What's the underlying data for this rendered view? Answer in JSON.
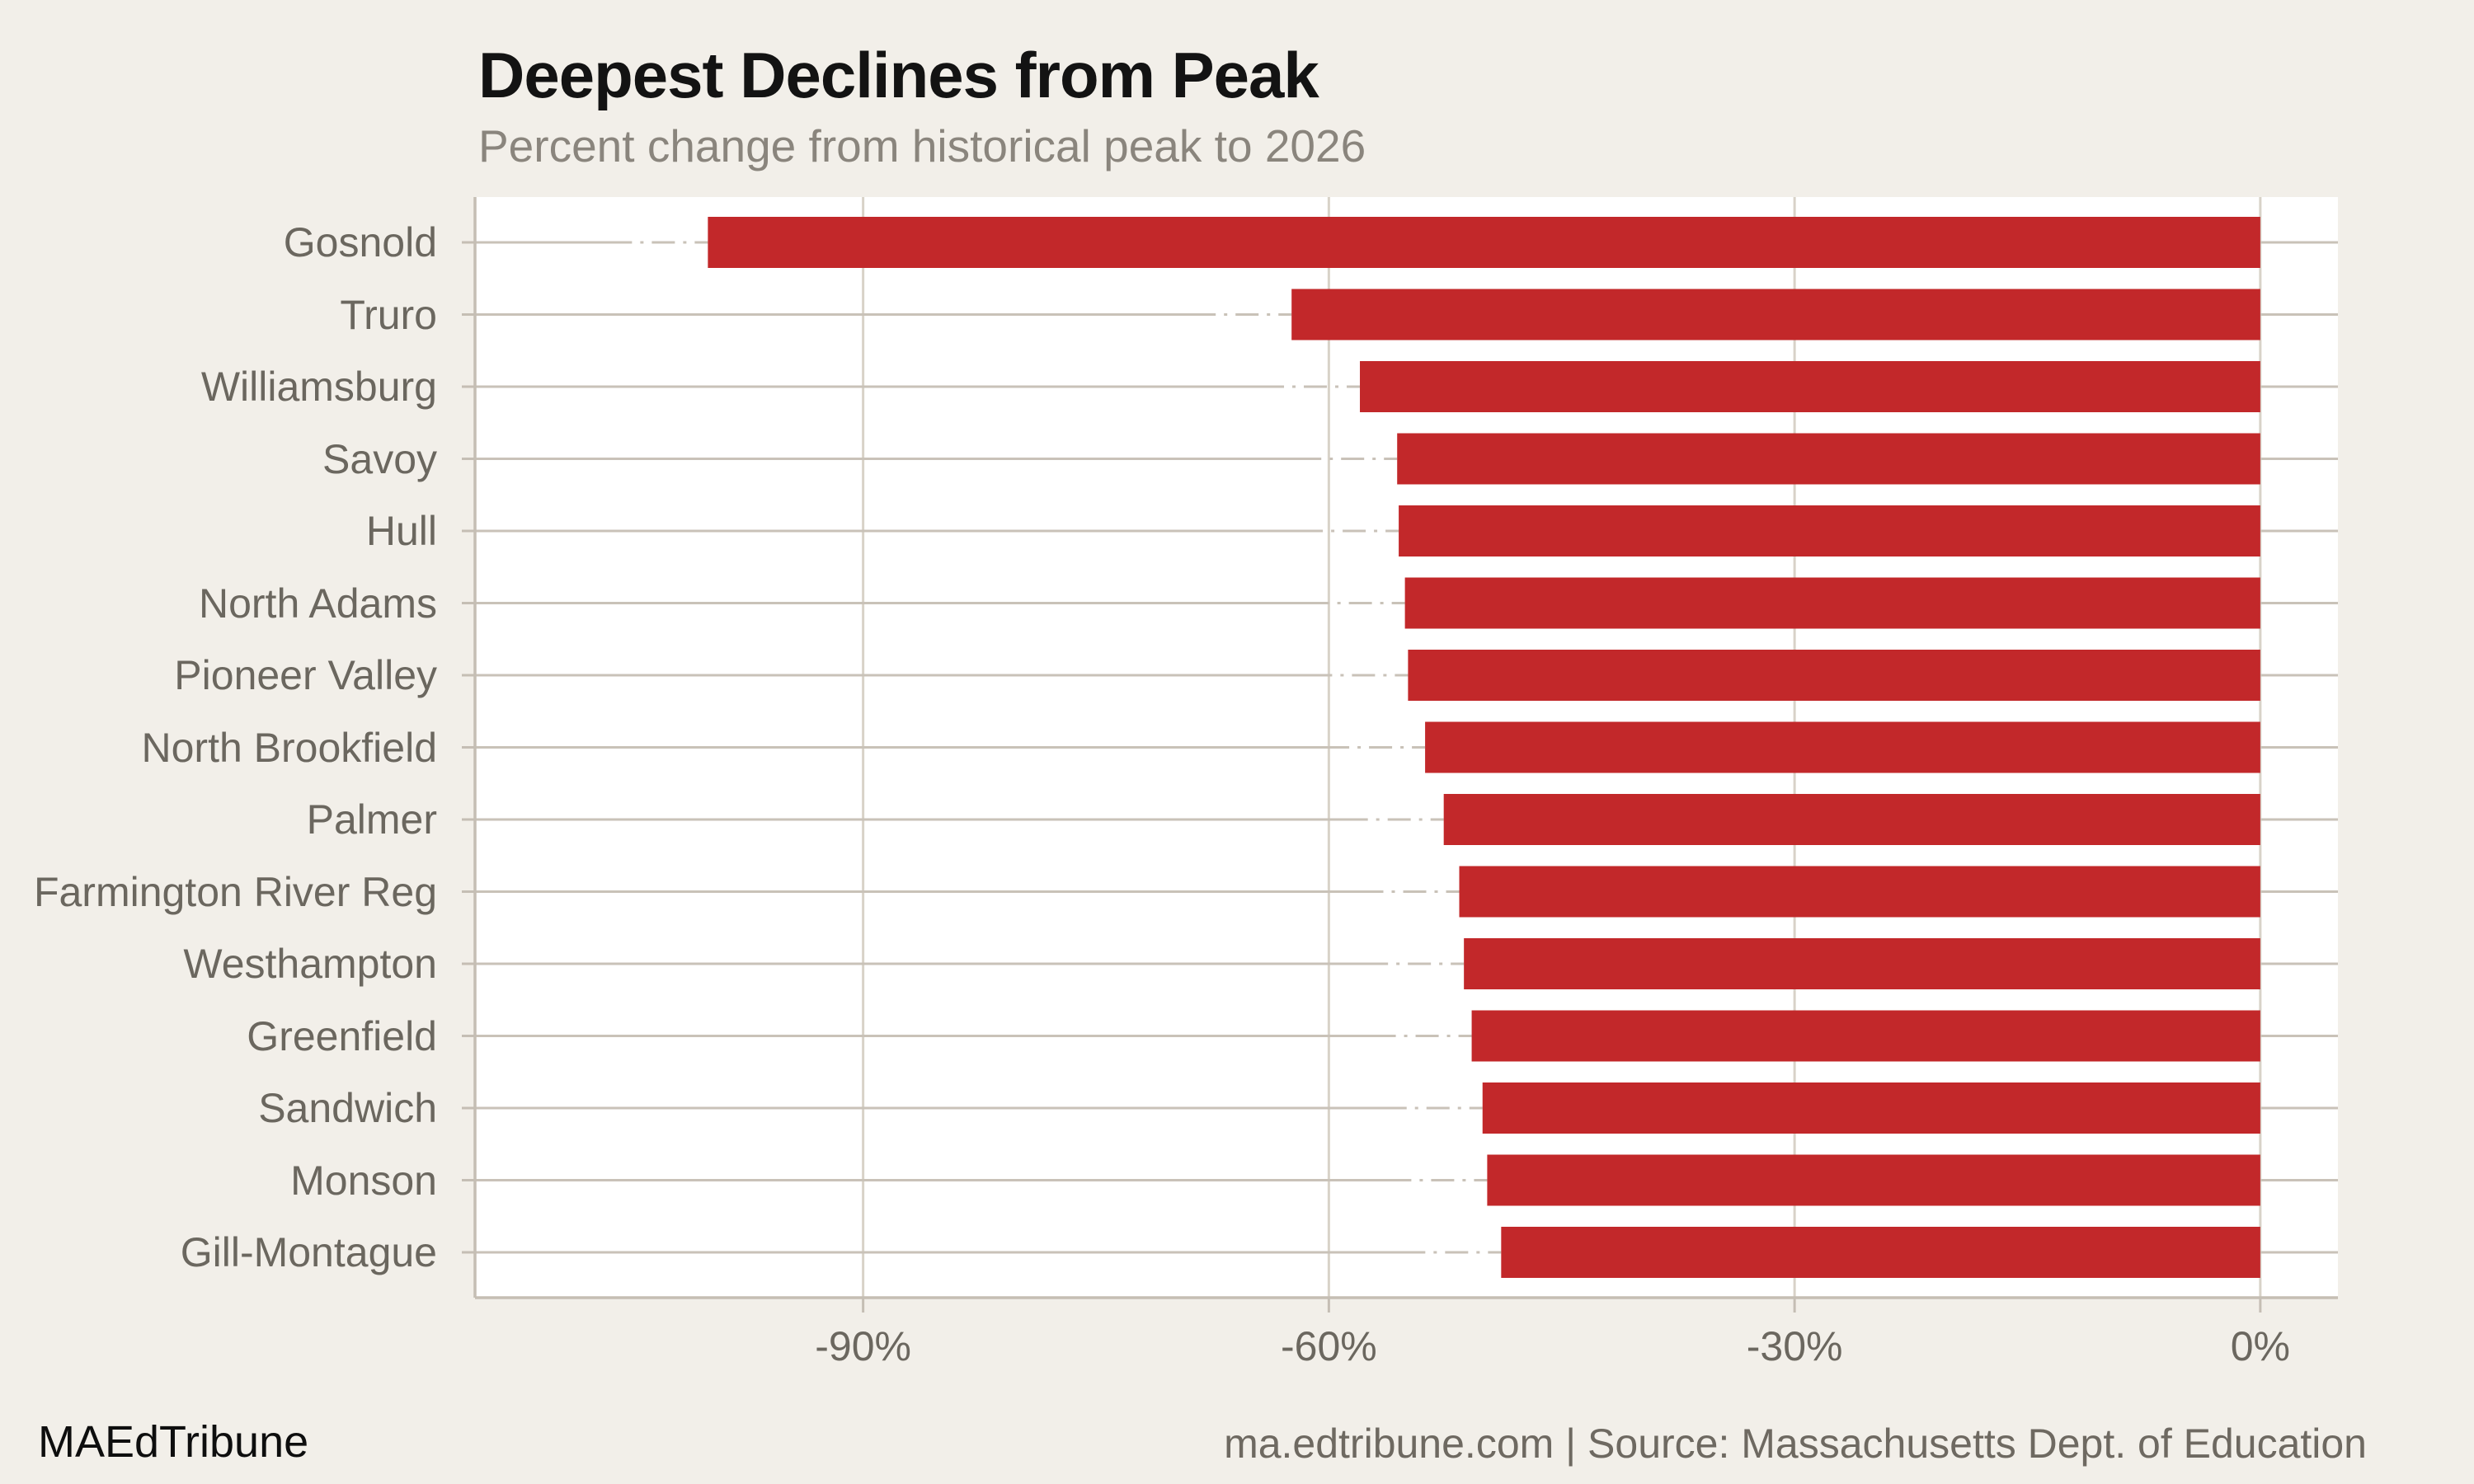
{
  "title": "Deepest Declines from Peak",
  "subtitle": "Percent change from historical peak to 2026",
  "footer": {
    "brand": "MAEdTribune",
    "source": "ma.edtribune.com | Source: Massachusetts Dept. of Education"
  },
  "colors": {
    "page_background": "#F2EFE9",
    "plot_background": "#FFFFFF",
    "bar": "#C2282A",
    "axis_spine": "#C5BEB4",
    "vertical_grid": "#D8D2C8",
    "row_grid": "#C9C2B8",
    "label_text": "#6B675F",
    "subtitle_text": "#8A857D",
    "title_text": "#131313",
    "footer_text": "#6E6961"
  },
  "chart_data": {
    "type": "bar",
    "orientation": "horizontal",
    "title": "Deepest Declines from Peak",
    "subtitle": "Percent change from historical peak to 2026",
    "xlabel": "",
    "ylabel": "",
    "categories": [
      "Gosnold",
      "Truro",
      "Williamsburg",
      "Savoy",
      "Hull",
      "North Adams",
      "Pioneer Valley",
      "North Brookfield",
      "Palmer",
      "Farmington River Reg",
      "Westhampton",
      "Greenfield",
      "Sandwich",
      "Monson",
      "Gill-Montague"
    ],
    "values": [
      -100.0,
      -62.4,
      -58.0,
      -55.6,
      -55.5,
      -55.1,
      -54.9,
      -53.8,
      -52.6,
      -51.6,
      -51.3,
      -50.8,
      -50.1,
      -49.8,
      -48.9
    ],
    "unit": "%",
    "xlim": [
      -115,
      5
    ],
    "xticks": [
      {
        "value": -90,
        "label": "-90%"
      },
      {
        "value": -60,
        "label": "-60%"
      },
      {
        "value": -30,
        "label": "-30%"
      },
      {
        "value": 0,
        "label": "0%"
      }
    ],
    "grid": "vertical solid lines at ticks; dash-dot horizontal leader line per category",
    "legend_position": "none"
  }
}
